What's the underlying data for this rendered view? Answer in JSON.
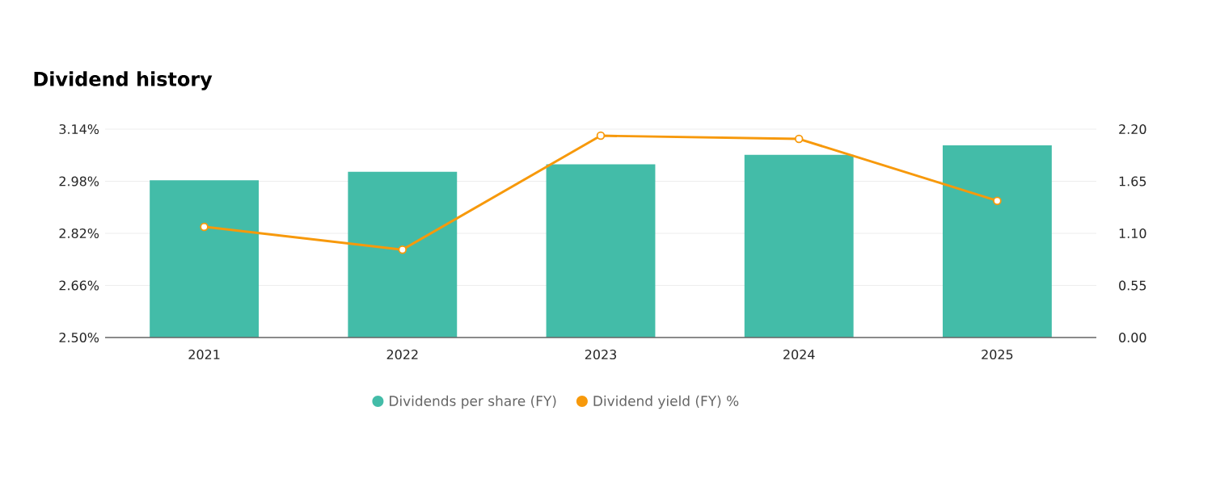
{
  "chart_data": {
    "type": "bar",
    "title": "Dividend history",
    "categories": [
      "2021",
      "2022",
      "2023",
      "2024",
      "2025"
    ],
    "series": [
      {
        "name": "Dividends per share (FY)",
        "axis": "y2",
        "color": "#43bca8",
        "values": [
          1.66,
          1.75,
          1.83,
          1.93,
          2.03
        ]
      },
      {
        "name": "Dividend yield (FY) %",
        "type": "line",
        "axis": "y",
        "color": "#f7990b",
        "marker": "circle",
        "values": [
          2.84,
          2.77,
          3.12,
          3.11,
          2.92
        ]
      }
    ],
    "ylim": [
      2.5,
      3.14
    ],
    "yticks": [
      {
        "value": 2.5,
        "label": "2.50%"
      },
      {
        "value": 2.66,
        "label": "2.66%"
      },
      {
        "value": 2.82,
        "label": "2.82%"
      },
      {
        "value": 2.98,
        "label": "2.98%"
      },
      {
        "value": 3.14,
        "label": "3.14%"
      }
    ],
    "y2lim": [
      0,
      2.2
    ],
    "y2ticks": [
      {
        "value": 0,
        "label": "0.00"
      },
      {
        "value": 0.55,
        "label": "0.55"
      },
      {
        "value": 1.1,
        "label": "1.10"
      },
      {
        "value": 1.65,
        "label": "1.65"
      },
      {
        "value": 2.2,
        "label": "2.20"
      }
    ],
    "grid": "y",
    "legend": "bottom"
  }
}
